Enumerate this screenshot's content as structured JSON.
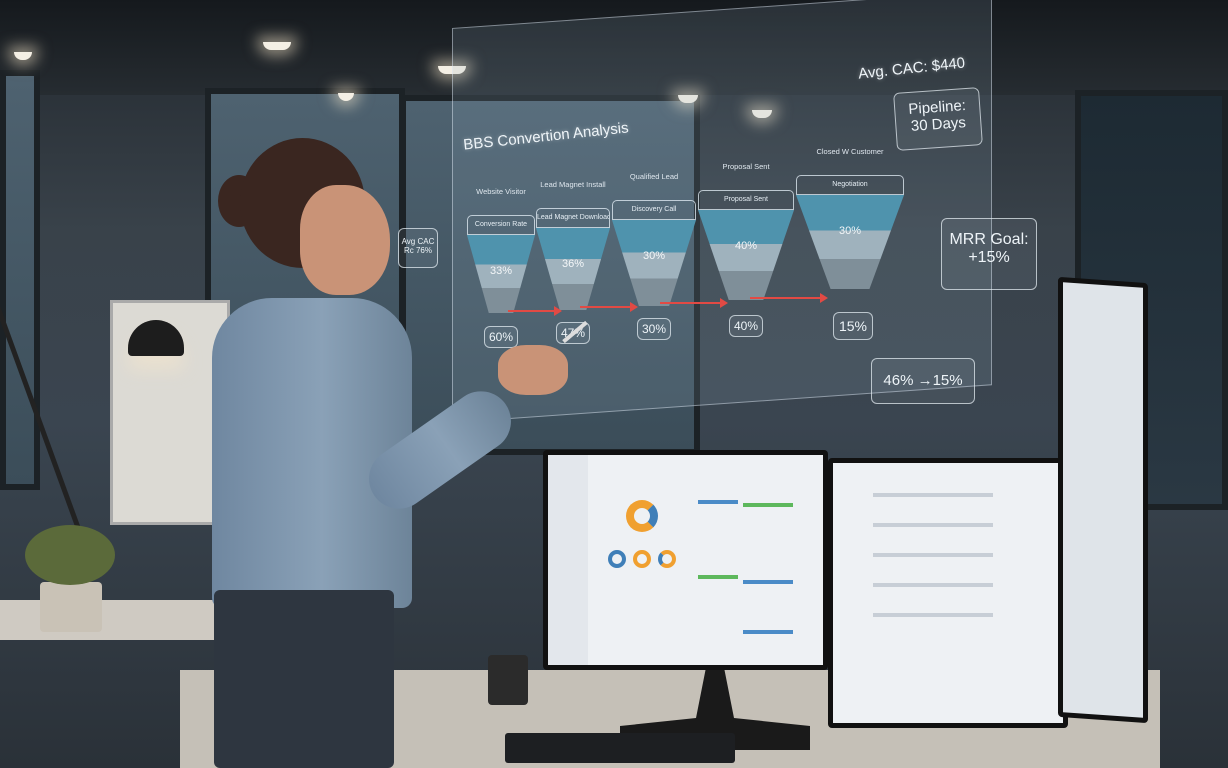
{
  "hologram": {
    "title": "BBS Convertion Analysis",
    "avg_cac": "Avg. CAC: $440",
    "pipeline_label": "Pipeline:",
    "pipeline_value": "30 Days",
    "mrr_label": "MRR Goal:",
    "mrr_value": "+15%",
    "summary": "46% →15%",
    "side_box": {
      "line1": "Avg CAC",
      "line2": "Rc 76%"
    },
    "stages": [
      {
        "label": "Website Visitor",
        "header": "Conversion Rate",
        "inner_pct": "33%",
        "rate": "60%"
      },
      {
        "label": "Lead Magnet Install",
        "header": "Lead Magnet Download",
        "inner_pct": "36%",
        "rate": "47%"
      },
      {
        "label": "Qualified Lead",
        "header": "Discovery Call",
        "inner_pct": "30%",
        "rate": "30%"
      },
      {
        "label": "Proposal Sent",
        "header": "Proposal Sent",
        "inner_pct": "40%",
        "rate": "40%"
      },
      {
        "label": "Closed W Customer",
        "header": "Negotiation",
        "inner_pct": "30%",
        "rate": "15%"
      }
    ]
  },
  "colors": {
    "funnel_top": "#4f93ad",
    "arrow": "#e24a44",
    "hologram_text": "#eef4f8"
  }
}
